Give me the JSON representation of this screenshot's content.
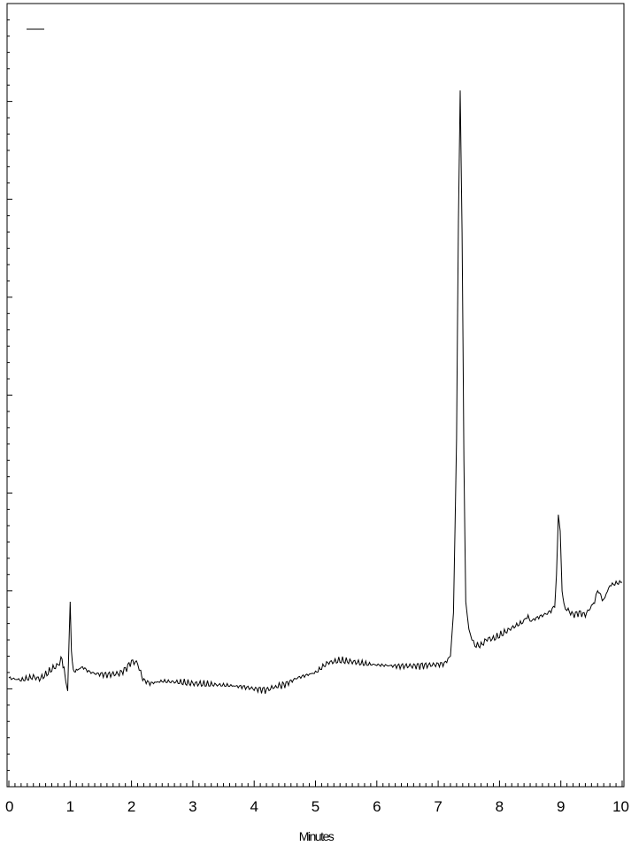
{
  "chart_data": {
    "type": "line",
    "title": "",
    "xlabel": "Minutes",
    "ylabel": "",
    "xlim": [
      0,
      10
    ],
    "ylim": [
      -1.0,
      6.2
    ],
    "x_ticks": [
      "0",
      "1",
      "2",
      "3",
      "4",
      "5",
      "6",
      "7",
      "8",
      "9",
      "10"
    ],
    "y_tick_labels": [],
    "grid": false,
    "legend": {
      "placement": "top-left",
      "entries": [
        ""
      ]
    },
    "series": [
      {
        "color": "#000000",
        "x": [
          0.0,
          0.2,
          0.4,
          0.5,
          0.6,
          0.7,
          0.8,
          0.85,
          0.9,
          0.93,
          0.96,
          0.98,
          1.0,
          1.02,
          1.05,
          1.1,
          1.2,
          1.3,
          1.4,
          1.6,
          1.8,
          1.9,
          2.0,
          2.1,
          2.15,
          2.2,
          2.3,
          2.5,
          2.8,
          3.0,
          3.3,
          3.6,
          3.8,
          4.0,
          4.2,
          4.35,
          4.5,
          4.7,
          5.0,
          5.2,
          5.4,
          5.6,
          5.8,
          6.0,
          6.3,
          6.6,
          6.9,
          7.1,
          7.2,
          7.25,
          7.3,
          7.33,
          7.36,
          7.39,
          7.42,
          7.45,
          7.5,
          7.55,
          7.6,
          7.7,
          7.8,
          7.9,
          8.0,
          8.2,
          8.4,
          8.45,
          8.5,
          8.6,
          8.8,
          8.9,
          8.93,
          8.96,
          8.99,
          9.02,
          9.05,
          9.1,
          9.2,
          9.3,
          9.4,
          9.5,
          9.55,
          9.6,
          9.65,
          9.7,
          9.8,
          9.9,
          10.0
        ],
        "y": [
          0.0,
          -0.02,
          0.01,
          -0.01,
          0.03,
          0.08,
          0.12,
          0.18,
          0.1,
          -0.05,
          -0.12,
          0.3,
          0.7,
          0.25,
          0.05,
          0.07,
          0.1,
          0.06,
          0.04,
          0.03,
          0.04,
          0.08,
          0.15,
          0.14,
          0.05,
          -0.02,
          -0.05,
          -0.03,
          -0.04,
          -0.05,
          -0.06,
          -0.07,
          -0.08,
          -0.1,
          -0.11,
          -0.08,
          -0.06,
          0.0,
          0.05,
          0.14,
          0.16,
          0.15,
          0.13,
          0.12,
          0.11,
          0.11,
          0.12,
          0.13,
          0.2,
          0.6,
          2.2,
          4.2,
          5.4,
          4.1,
          2.0,
          0.7,
          0.45,
          0.35,
          0.3,
          0.3,
          0.36,
          0.36,
          0.39,
          0.46,
          0.52,
          0.58,
          0.52,
          0.55,
          0.6,
          0.65,
          0.95,
          1.5,
          1.35,
          0.8,
          0.68,
          0.63,
          0.58,
          0.6,
          0.58,
          0.66,
          0.7,
          0.82,
          0.75,
          0.72,
          0.85,
          0.87,
          0.88
        ]
      }
    ]
  }
}
